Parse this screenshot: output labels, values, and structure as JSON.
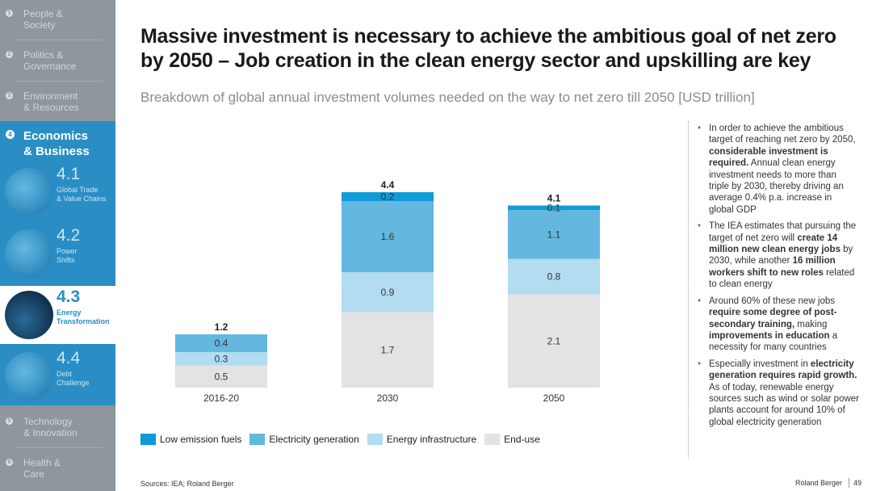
{
  "sidebar": {
    "sections": [
      {
        "num": "1",
        "label": "People &\nSociety"
      },
      {
        "num": "2",
        "label": "Politics &\nGovernance"
      },
      {
        "num": "3",
        "label": "Environment\n& Resources"
      },
      {
        "num": "5",
        "label": "Technology\n& Innovation"
      },
      {
        "num": "6",
        "label": "Health &\nCare"
      }
    ],
    "active_section": {
      "num": "4",
      "label": "Economics\n& Business"
    },
    "subsections": [
      {
        "num": "4.1",
        "label": "Global Trade\n& Value Chains"
      },
      {
        "num": "4.2",
        "label": "Power\nShifts"
      },
      {
        "num": "4.3",
        "label": "Energy\nTransformation"
      },
      {
        "num": "4.4",
        "label": "Debt\nChallenge"
      }
    ]
  },
  "header": {
    "title": "Massive investment is necessary to achieve the ambitious goal of net zero by 2050 – Job creation in the clean energy sector and upskilling are key",
    "subtitle": "Breakdown of global annual investment volumes needed on the way to net zero till 2050 [USD trillion]"
  },
  "colors": {
    "low_emission": "#0f9bd7",
    "electricity": "#64b8e0",
    "infrastructure": "#b2dcef",
    "end_use": "#e3e3e3",
    "accent": "#2a8ec5"
  },
  "chart_data": {
    "type": "bar",
    "stacked": true,
    "title": "Breakdown of global annual investment volumes needed on the way to net zero till 2050 [USD trillion]",
    "categories": [
      "2016-20",
      "2030",
      "2050"
    ],
    "series": [
      {
        "name": "End-use",
        "values": [
          0.5,
          1.7,
          2.1
        ]
      },
      {
        "name": "Energy infrastructure",
        "values": [
          0.3,
          0.9,
          0.8
        ]
      },
      {
        "name": "Electricity generation",
        "values": [
          0.4,
          1.6,
          1.1
        ]
      },
      {
        "name": "Low emission fuels",
        "values": [
          null,
          0.2,
          0.1
        ]
      }
    ],
    "totals": [
      "1.2",
      "4.4",
      "4.1"
    ],
    "legend": [
      "Low emission fuels",
      "Electricity generation",
      "Energy infrastructure",
      "End-use"
    ],
    "legend_position": "bottom",
    "ylim": [
      0,
      4.5
    ],
    "grid": false
  },
  "bullets": [
    {
      "segments": [
        {
          "t": "In order to achieve the ambitious target of reaching net zero by 2050, ",
          "b": false
        },
        {
          "t": "considerable investment is required.",
          "b": true
        },
        {
          "t": " Annual clean energy investment needs to more than triple by 2030, thereby driving an average 0.4% p.a. increase in global GDP",
          "b": false
        }
      ]
    },
    {
      "segments": [
        {
          "t": "The IEA estimates that pursuing the target of net zero will ",
          "b": false
        },
        {
          "t": "create 14 million new clean energy jobs",
          "b": true
        },
        {
          "t": " by 2030, while another ",
          "b": false
        },
        {
          "t": "16 million workers shift to new roles",
          "b": true
        },
        {
          "t": " related to clean energy",
          "b": false
        }
      ]
    },
    {
      "segments": [
        {
          "t": "Around 60% of these new jobs ",
          "b": false
        },
        {
          "t": "require some degree of post-secondary training,",
          "b": true
        },
        {
          "t": " making ",
          "b": false
        },
        {
          "t": "improvements in education",
          "b": true
        },
        {
          "t": " a necessity for many countries",
          "b": false
        }
      ]
    },
    {
      "segments": [
        {
          "t": "Especially investment in ",
          "b": false
        },
        {
          "t": "electricity generation requires rapid growth.",
          "b": true
        },
        {
          "t": " As of today, renewable energy sources such as wind or solar power plants account for around 10% of global electricity generation",
          "b": false
        }
      ]
    }
  ],
  "footer": {
    "sources": "Sources: IEA; Roland Berger",
    "brand": "Roland Berger",
    "page": "49"
  }
}
